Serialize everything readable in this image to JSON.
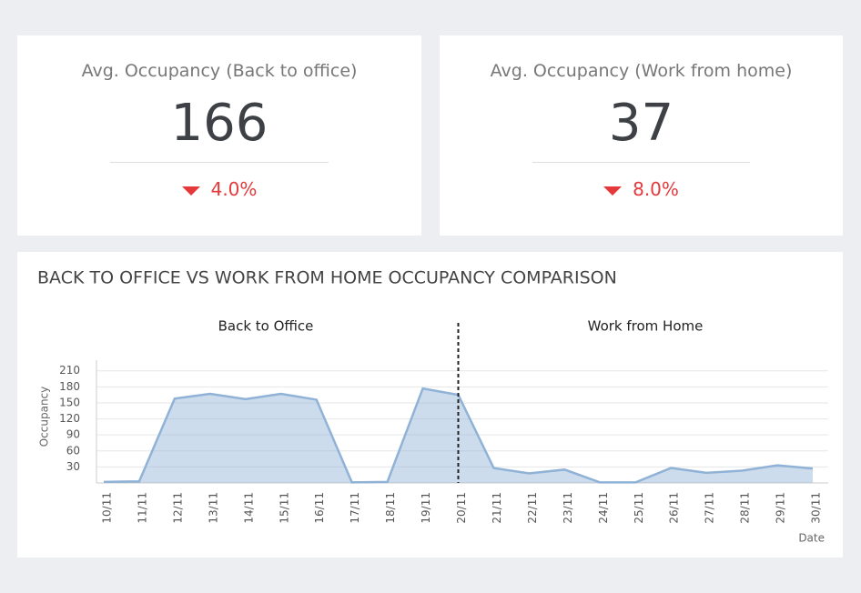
{
  "kpis": [
    {
      "title": "Avg. Occupancy (Back to office)",
      "value": "166",
      "change": "4.0%"
    },
    {
      "title": "Avg. Occupancy (Work from home)",
      "value": "37",
      "change": "8.0%"
    }
  ],
  "chart_data": {
    "type": "area",
    "title": "BACK TO OFFICE VS WORK FROM HOME OCCUPANCY COMPARISON",
    "categories": [
      "10/11",
      "11/11",
      "12/11",
      "13/11",
      "14/11",
      "15/11",
      "16/11",
      "17/11",
      "18/11",
      "19/11",
      "20/11",
      "21/11",
      "22/11",
      "23/11",
      "24/11",
      "25/11",
      "26/11",
      "27/11",
      "28/11",
      "29/11",
      "30/11"
    ],
    "values": [
      2,
      3,
      158,
      167,
      157,
      167,
      156,
      1,
      2,
      177,
      165,
      28,
      18,
      25,
      1,
      1,
      28,
      19,
      23,
      33,
      27
    ],
    "color": "#8fb2d6",
    "ylim": [
      0,
      230
    ],
    "yticks": [
      30,
      60,
      90,
      120,
      150,
      180,
      210
    ],
    "grid": true,
    "y_label": "Occupancy",
    "x_label": "Date",
    "annotations": [
      "Back to Office",
      "Work from Home"
    ],
    "divider_at": 10
  }
}
